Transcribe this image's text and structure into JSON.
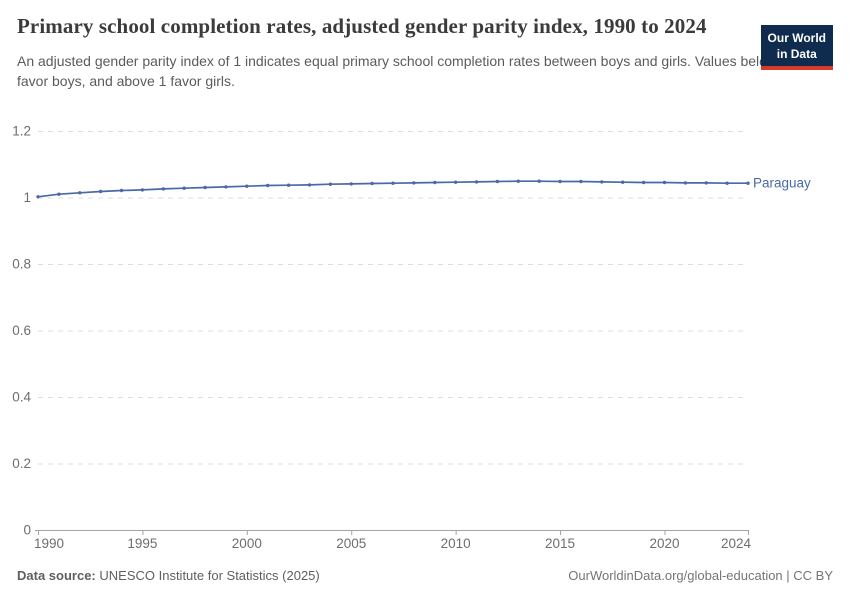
{
  "header": {
    "title": "Primary school completion rates, adjusted gender parity index, 1990 to 2024",
    "subtitle": "An adjusted gender parity index of 1 indicates equal primary school completion rates between boys and girls. Values below 1 favor boys, and above 1 favor girls.",
    "logo": {
      "line1": "Our World",
      "line2": "in Data",
      "bg_color": "#0f2b4e",
      "accent_color": "#d93a2b"
    }
  },
  "chart_data": {
    "type": "line",
    "title": "Primary school completion rates, adjusted gender parity index, 1990 to 2024",
    "xlabel": "",
    "ylabel": "",
    "xlim": [
      1990,
      2024
    ],
    "ylim": [
      0,
      1.2
    ],
    "grid": "horizontal-dashed",
    "legend_position": "end-of-line-label",
    "categories": [
      1990,
      1991,
      1992,
      1993,
      1994,
      1995,
      1996,
      1997,
      1998,
      1999,
      2000,
      2001,
      2002,
      2003,
      2004,
      2005,
      2006,
      2007,
      2008,
      2009,
      2010,
      2011,
      2012,
      2013,
      2014,
      2015,
      2016,
      2017,
      2018,
      2019,
      2020,
      2021,
      2022,
      2023,
      2024
    ],
    "series": [
      {
        "name": "Paraguay",
        "color": "#4a6aa5",
        "values": [
          1.002,
          1.01,
          1.014,
          1.018,
          1.021,
          1.023,
          1.026,
          1.028,
          1.03,
          1.032,
          1.034,
          1.036,
          1.037,
          1.038,
          1.04,
          1.041,
          1.042,
          1.043,
          1.044,
          1.045,
          1.046,
          1.047,
          1.048,
          1.049,
          1.049,
          1.048,
          1.048,
          1.047,
          1.046,
          1.045,
          1.045,
          1.044,
          1.044,
          1.043,
          1.043
        ]
      }
    ],
    "x_axis": {
      "ticks": [
        {
          "value": 1990,
          "label": "1990",
          "anchor": "start"
        },
        {
          "value": 1995,
          "label": "1995",
          "anchor": "middle"
        },
        {
          "value": 2000,
          "label": "2000",
          "anchor": "middle"
        },
        {
          "value": 2005,
          "label": "2005",
          "anchor": "middle"
        },
        {
          "value": 2010,
          "label": "2010",
          "anchor": "middle"
        },
        {
          "value": 2015,
          "label": "2015",
          "anchor": "middle"
        },
        {
          "value": 2020,
          "label": "2020",
          "anchor": "middle"
        },
        {
          "value": 2024,
          "label": "2024",
          "anchor": "end"
        }
      ]
    },
    "y_axis": {
      "ticks": [
        {
          "value": 0,
          "label": "0"
        },
        {
          "value": 0.2,
          "label": "0.2"
        },
        {
          "value": 0.4,
          "label": "0.4"
        },
        {
          "value": 0.6,
          "label": "0.6"
        },
        {
          "value": 0.8,
          "label": "0.8"
        },
        {
          "value": 1,
          "label": "1"
        },
        {
          "value": 1.2,
          "label": "1.2"
        }
      ]
    },
    "style": {
      "grid_color": "#dcdcdc",
      "axis_color": "#a3a3a3",
      "tick_label_color": "#6e6e6e"
    }
  },
  "footer": {
    "source_label": "Data source:",
    "source_text": "UNESCO Institute for Statistics (2025)",
    "attribution": "OurWorldinData.org/global-education | CC BY"
  }
}
